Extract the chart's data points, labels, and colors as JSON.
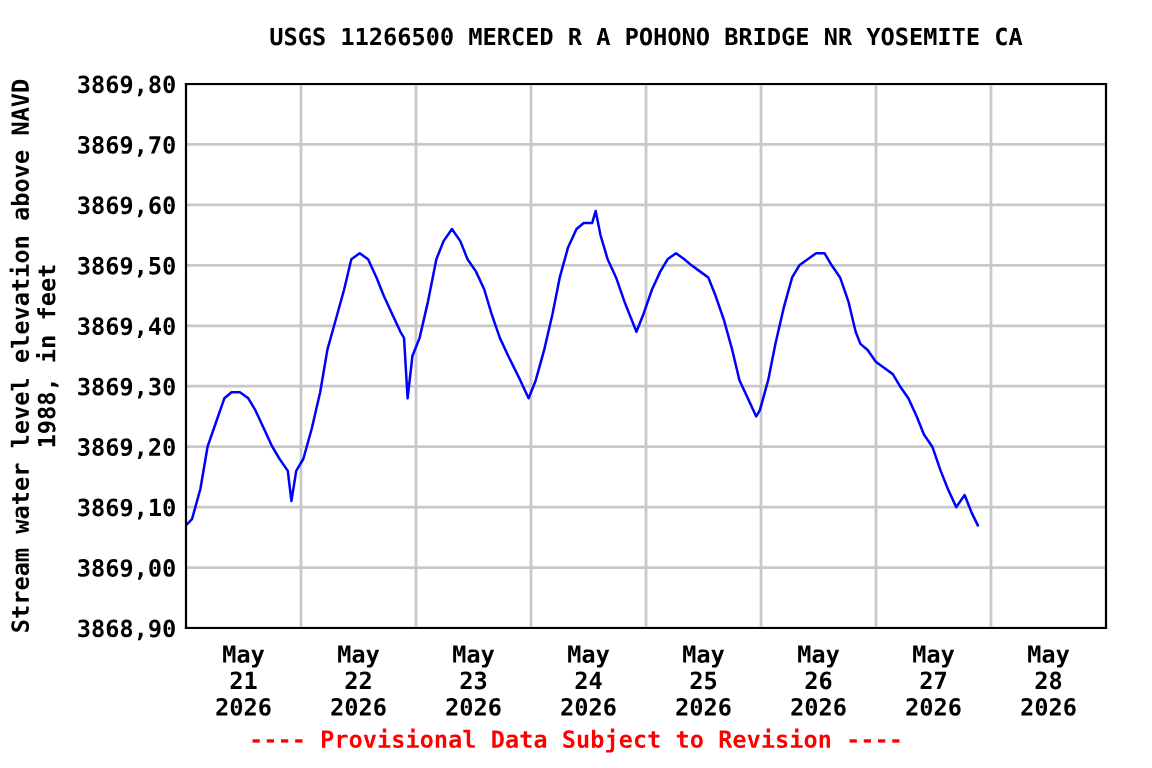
{
  "chart_data": {
    "type": "line",
    "title": "USGS 11266500 MERCED R A POHONO BRIDGE NR YOSEMITE CA",
    "ylabel": "Stream water level elevation above NAVD\n1988, in feet",
    "annotations": [
      "---- Provisional Data Subject to Revision ----"
    ],
    "grid": true,
    "legend": false,
    "marker": "none",
    "line_style": "solid",
    "xlim": [
      "2026-05-21T00:00",
      "2026-05-29T00:00"
    ],
    "xticks": [
      {
        "value": "2026-05-22T00:00",
        "label": null
      },
      {
        "value": "2026-05-23T00:00",
        "label": null
      },
      {
        "value": "2026-05-24T00:00",
        "label": null
      },
      {
        "value": "2026-05-25T00:00",
        "label": null
      },
      {
        "value": "2026-05-26T00:00",
        "label": null
      },
      {
        "value": "2026-05-27T00:00",
        "label": null
      },
      {
        "value": "2026-05-28T00:00",
        "label": null
      },
      {
        "value": "2026-05-21T12:00",
        "label": "May\n21\n2026"
      },
      {
        "value": "2026-05-22T12:00",
        "label": "May\n22\n2026"
      },
      {
        "value": "2026-05-23T12:00",
        "label": "May\n23\n2026"
      },
      {
        "value": "2026-05-24T12:00",
        "label": "May\n24\n2026"
      },
      {
        "value": "2026-05-25T12:00",
        "label": "May\n25\n2026"
      },
      {
        "value": "2026-05-26T12:00",
        "label": "May\n26\n2026"
      },
      {
        "value": "2026-05-27T12:00",
        "label": "May\n27\n2026"
      },
      {
        "value": "2026-05-28T12:00",
        "label": "May\n28\n2026"
      }
    ],
    "ylim": [
      3868.9,
      3869.8
    ],
    "yticks": [
      {
        "value": 3868.9,
        "label": "3868,90"
      },
      {
        "value": 3869.0,
        "label": "3869,00"
      },
      {
        "value": 3869.1,
        "label": "3869,10"
      },
      {
        "value": 3869.2,
        "label": "3869,20"
      },
      {
        "value": 3869.3,
        "label": "3869,30"
      },
      {
        "value": 3869.4,
        "label": "3869,40"
      },
      {
        "value": 3869.5,
        "label": "3869,50"
      },
      {
        "value": 3869.6,
        "label": "3869,60"
      },
      {
        "value": 3869.7,
        "label": "3869,70"
      },
      {
        "value": 3869.8,
        "label": "3869,80"
      }
    ],
    "series": [
      {
        "color": "#0000ff",
        "x": [
          "2026-05-21T00:00",
          "2026-05-21T01:15",
          "2026-05-21T03:00",
          "2026-05-21T04:30",
          "2026-05-21T06:15",
          "2026-05-21T08:00",
          "2026-05-21T09:30",
          "2026-05-21T11:15",
          "2026-05-21T13:00",
          "2026-05-21T14:30",
          "2026-05-21T16:15",
          "2026-05-21T18:00",
          "2026-05-21T19:30",
          "2026-05-21T21:15",
          "2026-05-21T22:00",
          "2026-05-21T23:00",
          "2026-05-22T00:30",
          "2026-05-22T02:15",
          "2026-05-22T04:00",
          "2026-05-22T05:30",
          "2026-05-22T07:15",
          "2026-05-22T09:00",
          "2026-05-22T10:30",
          "2026-05-22T12:15",
          "2026-05-22T14:00",
          "2026-05-22T15:45",
          "2026-05-22T17:15",
          "2026-05-22T19:00",
          "2026-05-22T20:45",
          "2026-05-22T21:30",
          "2026-05-22T22:15",
          "2026-05-22T23:15",
          "2026-05-23T00:45",
          "2026-05-23T02:30",
          "2026-05-23T04:15",
          "2026-05-23T05:45",
          "2026-05-23T07:30",
          "2026-05-23T09:15",
          "2026-05-23T10:45",
          "2026-05-23T12:30",
          "2026-05-23T14:15",
          "2026-05-23T15:45",
          "2026-05-23T17:30",
          "2026-05-23T19:15",
          "2026-05-23T21:45",
          "2026-05-23T23:30",
          "2026-05-24T01:00",
          "2026-05-24T02:45",
          "2026-05-24T04:30",
          "2026-05-24T06:00",
          "2026-05-24T07:45",
          "2026-05-24T09:30",
          "2026-05-24T11:00",
          "2026-05-24T12:45",
          "2026-05-24T13:30",
          "2026-05-24T14:30",
          "2026-05-24T16:00",
          "2026-05-24T17:45",
          "2026-05-24T19:30",
          "2026-05-24T21:00",
          "2026-05-24T22:00",
          "2026-05-24T23:30",
          "2026-05-25T01:15",
          "2026-05-25T03:00",
          "2026-05-25T04:30",
          "2026-05-25T06:15",
          "2026-05-25T08:00",
          "2026-05-25T09:30",
          "2026-05-25T11:15",
          "2026-05-25T13:00",
          "2026-05-25T14:30",
          "2026-05-25T16:15",
          "2026-05-25T18:00",
          "2026-05-25T19:30",
          "2026-05-25T21:15",
          "2026-05-25T23:00",
          "2026-05-25T23:45",
          "2026-05-26T01:30",
          "2026-05-26T03:00",
          "2026-05-26T04:45",
          "2026-05-26T06:30",
          "2026-05-26T08:00",
          "2026-05-26T09:45",
          "2026-05-26T11:30",
          "2026-05-26T13:15",
          "2026-05-26T14:45",
          "2026-05-26T16:30",
          "2026-05-26T18:15",
          "2026-05-26T19:45",
          "2026-05-26T20:45",
          "2026-05-26T22:15",
          "2026-05-27T00:00",
          "2026-05-27T01:45",
          "2026-05-27T03:30",
          "2026-05-27T05:00",
          "2026-05-27T06:45",
          "2026-05-27T08:30",
          "2026-05-27T10:00",
          "2026-05-27T11:45",
          "2026-05-27T13:30",
          "2026-05-27T15:00",
          "2026-05-27T16:45",
          "2026-05-27T18:30",
          "2026-05-27T20:00",
          "2026-05-27T21:15"
        ],
        "values": [
          3869.07,
          3869.08,
          3869.13,
          3869.2,
          3869.24,
          3869.28,
          3869.29,
          3869.29,
          3869.28,
          3869.26,
          3869.23,
          3869.2,
          3869.18,
          3869.16,
          3869.11,
          3869.16,
          3869.18,
          3869.23,
          3869.29,
          3869.36,
          3869.41,
          3869.46,
          3869.51,
          3869.52,
          3869.51,
          3869.48,
          3869.45,
          3869.42,
          3869.39,
          3869.38,
          3869.28,
          3869.35,
          3869.38,
          3869.44,
          3869.51,
          3869.54,
          3869.56,
          3869.54,
          3869.51,
          3869.49,
          3869.46,
          3869.42,
          3869.38,
          3869.35,
          3869.31,
          3869.28,
          3869.31,
          3869.36,
          3869.42,
          3869.48,
          3869.53,
          3869.56,
          3869.57,
          3869.57,
          3869.59,
          3869.55,
          3869.51,
          3869.48,
          3869.44,
          3869.41,
          3869.39,
          3869.42,
          3869.46,
          3869.49,
          3869.51,
          3869.52,
          3869.51,
          3869.5,
          3869.49,
          3869.48,
          3869.45,
          3869.41,
          3869.36,
          3869.31,
          3869.28,
          3869.25,
          3869.26,
          3869.31,
          3869.37,
          3869.43,
          3869.48,
          3869.5,
          3869.51,
          3869.52,
          3869.52,
          3869.5,
          3869.48,
          3869.44,
          3869.39,
          3869.37,
          3869.36,
          3869.34,
          3869.33,
          3869.32,
          3869.3,
          3869.28,
          3869.25,
          3869.22,
          3869.2,
          3869.16,
          3869.13,
          3869.1,
          3869.12,
          3869.09,
          3869.07
        ]
      }
    ]
  }
}
